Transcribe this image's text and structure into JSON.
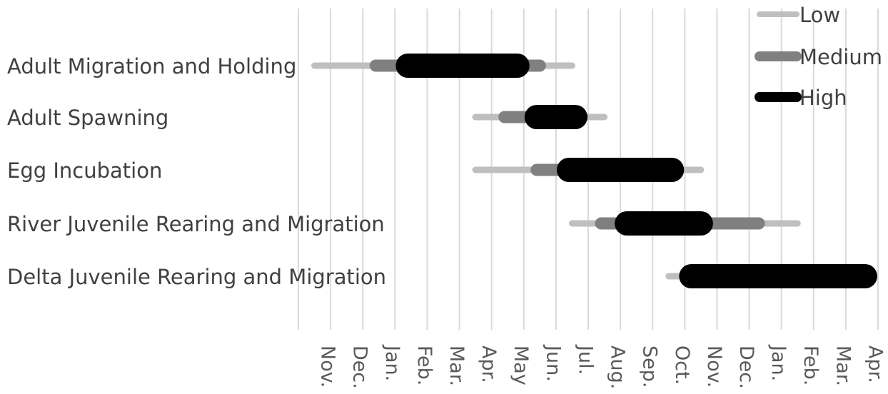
{
  "chart_data": {
    "type": "gantt-range",
    "title": "",
    "xlabel": "",
    "ylabel": "",
    "x_tick_labels": [
      "Nov.",
      "Dec.",
      "Jan.",
      "Feb.",
      "Mar.",
      "Apr.",
      "May",
      "Jun.",
      "Jul.",
      "Aug.",
      "Sep.",
      "Oct.",
      "Nov.",
      "Dec.",
      "Jan.",
      "Feb.",
      "Mar.",
      "Apr."
    ],
    "x_range": [
      0,
      18
    ],
    "grid": "vertical",
    "legend": {
      "placement": "top-right",
      "entries": [
        {
          "name": "Low",
          "color": "#bfbfbf"
        },
        {
          "name": "Medium",
          "color": "#808080"
        },
        {
          "name": "High",
          "color": "#000000"
        }
      ]
    },
    "categories": [
      "Adult Migration and Holding",
      "Adult Spawning",
      "Egg Incubation",
      "River Juvenile Rearing and Migration",
      "Delta Juvenile Rearing and Migration"
    ],
    "series": [
      {
        "name": "Low",
        "color": "#bfbfbf",
        "ranges": [
          [
            0.5,
            8.5
          ],
          [
            5.5,
            9.5
          ],
          [
            5.5,
            12.5
          ],
          [
            8.5,
            15.5
          ],
          [
            11.5,
            12.5
          ]
        ]
      },
      {
        "name": "Medium",
        "color": "#808080",
        "ranges": [
          [
            2.4,
            7.5
          ],
          [
            6.4,
            8.8
          ],
          [
            7.4,
            11.7
          ],
          [
            9.4,
            14.3
          ],
          [
            12.2,
            17.5
          ]
        ]
      },
      {
        "name": "High",
        "color": "#000000",
        "ranges": [
          [
            3.4,
            6.8
          ],
          [
            7.4,
            8.6
          ],
          [
            8.4,
            11.6
          ],
          [
            10.2,
            12.5
          ],
          [
            12.2,
            17.6
          ]
        ]
      }
    ]
  }
}
